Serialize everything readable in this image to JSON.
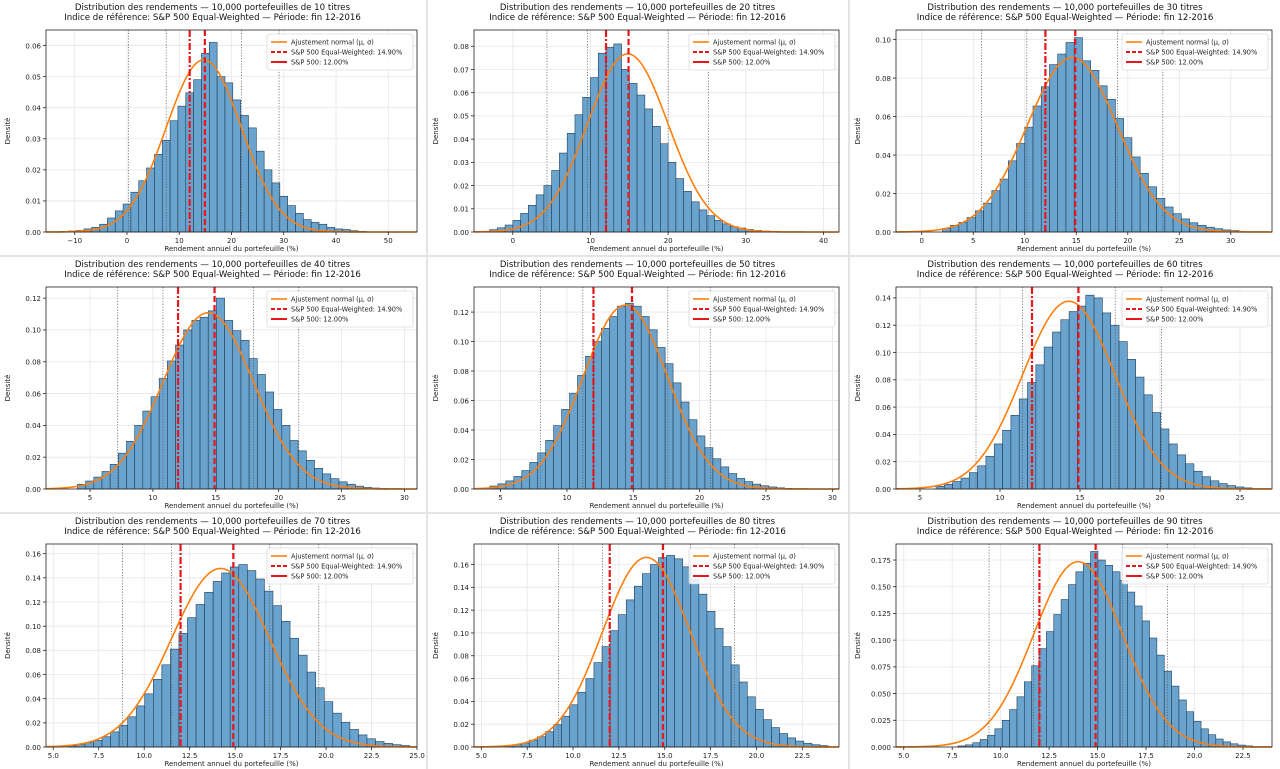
{
  "figure": {
    "legend_labels": {
      "fit": "Ajustement normal (μ, σ)",
      "ew": "S&P 500 Equal-Weighted: 14.90%",
      "sp": "S&P 500: 12.00%"
    },
    "colors": {
      "bars": "#6aa3cd",
      "bar_edge": "#1f3f5a",
      "fit_curve": "#ff7f0e",
      "benchmark_lines": "#e8151b",
      "sigma_lines": "#555555"
    }
  },
  "chart_data": [
    {
      "type": "bar",
      "title": "Distribution des rendements — 10,000 portefeuilles de 10 titres",
      "subtitle": "Indice de référence: S&P 500 Equal-Weighted — Période: fin 12-2016",
      "xlabel": "Rendement annuel du portefeuille (%)",
      "ylabel": "Densité",
      "n_stocks": 10,
      "mean": 14.7,
      "std": 7.2,
      "xlim": [
        -15.5,
        55.5
      ],
      "ylim": [
        0,
        0.065
      ],
      "xticks": [
        -10,
        0,
        10,
        20,
        30,
        40,
        50
      ],
      "xtick_labels": [
        "−10",
        "0",
        "10",
        "20",
        "30",
        "40",
        "50"
      ],
      "yticks": [
        0,
        0.01,
        0.02,
        0.03,
        0.04,
        0.05,
        0.06
      ],
      "ytick_labels": [
        "0.00",
        "0.01",
        "0.02",
        "0.03",
        "0.04",
        "0.05",
        "0.06"
      ],
      "bin_start": -12.75,
      "bin_width": 1.5,
      "values": [
        0.0002,
        0.0003,
        0.0005,
        0.001,
        0.0015,
        0.0025,
        0.0045,
        0.0068,
        0.009,
        0.0128,
        0.0165,
        0.0206,
        0.025,
        0.0295,
        0.0358,
        0.0405,
        0.0448,
        0.049,
        0.0575,
        0.061,
        0.05,
        0.048,
        0.0425,
        0.0375,
        0.0335,
        0.026,
        0.02,
        0.0158,
        0.0115,
        0.0085,
        0.006,
        0.004,
        0.0031,
        0.0025,
        0.0015,
        0.001,
        0.0008,
        0.0004,
        0.0002
      ],
      "benchmark_ew": 14.9,
      "benchmark_sp": 12.0
    },
    {
      "type": "bar",
      "title": "Distribution des rendements — 10,000 portefeuilles de 20 titres",
      "subtitle": "Indice de référence: S&P 500 Equal-Weighted — Période: fin 12-2016",
      "xlabel": "Rendement annuel du portefeuille (%)",
      "ylabel": "Densité",
      "n_stocks": 20,
      "mean": 14.8,
      "std": 5.2,
      "xlim": [
        -5,
        42
      ],
      "ylim": [
        0,
        0.087
      ],
      "xticks": [
        0,
        10,
        20,
        30,
        40
      ],
      "xtick_labels": [
        "0",
        "10",
        "20",
        "30",
        "40"
      ],
      "yticks": [
        0,
        0.01,
        0.02,
        0.03,
        0.04,
        0.05,
        0.06,
        0.07,
        0.08
      ],
      "ytick_labels": [
        "0.00",
        "0.01",
        "0.02",
        "0.03",
        "0.04",
        "0.05",
        "0.06",
        "0.07",
        "0.08"
      ],
      "bin_start": -3.0,
      "bin_width": 1.0,
      "values": [
        0.001,
        0.0018,
        0.003,
        0.005,
        0.008,
        0.0115,
        0.016,
        0.02,
        0.0265,
        0.034,
        0.0425,
        0.0505,
        0.058,
        0.0665,
        0.077,
        0.0795,
        0.081,
        0.07,
        0.064,
        0.059,
        0.053,
        0.0455,
        0.038,
        0.03,
        0.023,
        0.0175,
        0.013,
        0.0095,
        0.007,
        0.005,
        0.0035,
        0.0023,
        0.0017,
        0.0011,
        0.0007,
        0.0004,
        0.0002
      ],
      "benchmark_ew": 14.9,
      "benchmark_sp": 12.0
    },
    {
      "type": "bar",
      "title": "Distribution des rendements — 10,000 portefeuilles de 30 titres",
      "subtitle": "Indice de référence: S&P 500 Equal-Weighted — Période: fin 12-2016",
      "xlabel": "Rendement annuel du portefeuille (%)",
      "ylabel": "Densité",
      "n_stocks": 30,
      "mean": 14.6,
      "std": 4.4,
      "xlim": [
        -2.5,
        34
      ],
      "ylim": [
        0,
        0.105
      ],
      "xticks": [
        0,
        5,
        10,
        15,
        20,
        25,
        30
      ],
      "xtick_labels": [
        "0",
        "5",
        "10",
        "15",
        "20",
        "25",
        "30"
      ],
      "yticks": [
        0,
        0.02,
        0.04,
        0.06,
        0.08,
        0.1
      ],
      "ytick_labels": [
        "0.00",
        "0.02",
        "0.04",
        "0.06",
        "0.08",
        "0.10"
      ],
      "bin_start": 2.0,
      "bin_width": 0.8,
      "values": [
        0.0018,
        0.0035,
        0.005,
        0.0075,
        0.011,
        0.015,
        0.0215,
        0.0275,
        0.037,
        0.046,
        0.0545,
        0.0655,
        0.0755,
        0.087,
        0.0925,
        0.0985,
        0.101,
        0.089,
        0.084,
        0.076,
        0.069,
        0.059,
        0.049,
        0.039,
        0.0305,
        0.0235,
        0.0175,
        0.013,
        0.0095,
        0.0068,
        0.0048,
        0.0035,
        0.0025,
        0.0017,
        0.0011,
        0.0007
      ],
      "benchmark_ew": 14.9,
      "benchmark_sp": 12.0
    },
    {
      "type": "bar",
      "title": "Distribution des rendements — 10,000 portefeuilles de 40 titres",
      "subtitle": "Indice de référence: S&P 500 Equal-Weighted — Période: fin 12-2016",
      "xlabel": "Rendement annuel du portefeuille (%)",
      "ylabel": "Densité",
      "n_stocks": 40,
      "mean": 14.4,
      "std": 3.6,
      "xlim": [
        1.5,
        31
      ],
      "ylim": [
        0,
        0.127
      ],
      "xticks": [
        5,
        10,
        15,
        20,
        25,
        30
      ],
      "xtick_labels": [
        "5",
        "10",
        "15",
        "20",
        "25",
        "30"
      ],
      "yticks": [
        0,
        0.02,
        0.04,
        0.06,
        0.08,
        0.1,
        0.12
      ],
      "ytick_labels": [
        "0.00",
        "0.02",
        "0.04",
        "0.06",
        "0.08",
        "0.10",
        "0.12"
      ],
      "bin_start": 4.0,
      "bin_width": 0.65,
      "values": [
        0.003,
        0.005,
        0.0075,
        0.011,
        0.0155,
        0.0225,
        0.03,
        0.04,
        0.049,
        0.058,
        0.0695,
        0.0805,
        0.0905,
        0.1,
        0.106,
        0.108,
        0.112,
        0.12,
        0.106,
        0.0995,
        0.0935,
        0.082,
        0.072,
        0.061,
        0.05,
        0.04,
        0.0305,
        0.024,
        0.018,
        0.013,
        0.0095,
        0.0065,
        0.0045,
        0.003,
        0.0018,
        0.001,
        0.0006,
        0.0003
      ],
      "benchmark_ew": 14.9,
      "benchmark_sp": 12.0
    },
    {
      "type": "bar",
      "title": "Distribution des rendements — 10,000 portefeuilles de 50 titres",
      "subtitle": "Indice de référence: S&P 500 Equal-Weighted — Période: fin 12-2016",
      "xlabel": "Rendement annuel du portefeuille (%)",
      "ylabel": "Densité",
      "n_stocks": 50,
      "mean": 14.4,
      "std": 3.2,
      "xlim": [
        3,
        30.5
      ],
      "ylim": [
        0,
        0.137
      ],
      "xticks": [
        5,
        10,
        15,
        20,
        25,
        30
      ],
      "xtick_labels": [
        "5",
        "10",
        "15",
        "20",
        "25",
        "30"
      ],
      "yticks": [
        0,
        0.02,
        0.04,
        0.06,
        0.08,
        0.1,
        0.12
      ],
      "ytick_labels": [
        "0.00",
        "0.02",
        "0.04",
        "0.06",
        "0.08",
        "0.10",
        "0.12"
      ],
      "bin_start": 4.2,
      "bin_width": 0.6,
      "values": [
        0.002,
        0.0035,
        0.0055,
        0.0085,
        0.0125,
        0.018,
        0.0245,
        0.033,
        0.043,
        0.054,
        0.065,
        0.077,
        0.09,
        0.1,
        0.109,
        0.117,
        0.124,
        0.126,
        0.124,
        0.117,
        0.108,
        0.096,
        0.085,
        0.072,
        0.059,
        0.047,
        0.036,
        0.028,
        0.0205,
        0.015,
        0.0105,
        0.0072,
        0.005,
        0.0033,
        0.0022,
        0.0014,
        0.0008,
        0.0004
      ],
      "benchmark_ew": 14.9,
      "benchmark_sp": 12.0
    },
    {
      "type": "bar",
      "title": "Distribution des rendements — 10,000 portefeuilles de 60 titres",
      "subtitle": "Indice de référence: S&P 500 Equal-Weighted — Période: fin 12-2016",
      "xlabel": "Rendement annuel du portefeuille (%)",
      "ylabel": "Densité",
      "n_stocks": 60,
      "mean": 14.3,
      "std": 2.9,
      "xlim": [
        3.5,
        27
      ],
      "ylim": [
        0,
        0.148
      ],
      "xticks": [
        5,
        10,
        15,
        20,
        25
      ],
      "xtick_labels": [
        "5",
        "10",
        "15",
        "20",
        "25"
      ],
      "yticks": [
        0,
        0.02,
        0.04,
        0.06,
        0.08,
        0.1,
        0.12,
        0.14
      ],
      "ytick_labels": [
        "0.00",
        "0.02",
        "0.04",
        "0.06",
        "0.08",
        "0.10",
        "0.12",
        "0.14"
      ],
      "bin_start": 6.0,
      "bin_width": 0.52,
      "values": [
        0.002,
        0.0035,
        0.0055,
        0.008,
        0.012,
        0.017,
        0.024,
        0.033,
        0.043,
        0.054,
        0.066,
        0.078,
        0.091,
        0.104,
        0.115,
        0.124,
        0.13,
        0.134,
        0.142,
        0.14,
        0.129,
        0.12,
        0.108,
        0.095,
        0.082,
        0.069,
        0.056,
        0.044,
        0.033,
        0.025,
        0.0185,
        0.013,
        0.009,
        0.006,
        0.004,
        0.0025,
        0.0015,
        0.0008
      ],
      "benchmark_ew": 14.9,
      "benchmark_sp": 12.0
    },
    {
      "type": "bar",
      "title": "Distribution des rendements — 10,000 portefeuilles de 70 titres",
      "subtitle": "Indice de référence: S&P 500 Equal-Weighted — Période: fin 12-2016",
      "xlabel": "Rendement annuel du portefeuille (%)",
      "ylabel": "Densité",
      "n_stocks": 70,
      "mean": 14.2,
      "std": 2.7,
      "xlim": [
        4.6,
        25
      ],
      "ylim": [
        0,
        0.168
      ],
      "xticks": [
        5,
        7.5,
        10,
        12.5,
        15,
        17.5,
        20,
        22.5,
        25
      ],
      "xtick_labels": [
        "5.0",
        "7.5",
        "10.0",
        "12.5",
        "15.0",
        "17.5",
        "20.0",
        "22.5",
        "25.0"
      ],
      "yticks": [
        0,
        0.02,
        0.04,
        0.06,
        0.08,
        0.1,
        0.12,
        0.14,
        0.16
      ],
      "ytick_labels": [
        "0.00",
        "0.02",
        "0.04",
        "0.06",
        "0.08",
        "0.10",
        "0.12",
        "0.14",
        "0.16"
      ],
      "bin_start": 5.8,
      "bin_width": 0.47,
      "values": [
        0.001,
        0.002,
        0.0035,
        0.0055,
        0.0085,
        0.0125,
        0.018,
        0.025,
        0.034,
        0.044,
        0.056,
        0.068,
        0.081,
        0.094,
        0.107,
        0.118,
        0.128,
        0.137,
        0.144,
        0.149,
        0.151,
        0.146,
        0.139,
        0.129,
        0.117,
        0.104,
        0.09,
        0.076,
        0.062,
        0.049,
        0.0375,
        0.028,
        0.0205,
        0.0145,
        0.01,
        0.0068,
        0.0045,
        0.003,
        0.0019,
        0.0012
      ],
      "benchmark_ew": 14.9,
      "benchmark_sp": 12.0
    },
    {
      "type": "bar",
      "title": "Distribution des rendements — 10,000 portefeuilles de 80 titres",
      "subtitle": "Indice de référence: S&P 500 Equal-Weighted — Période: fin 12-2016",
      "xlabel": "Rendement annuel du portefeuille (%)",
      "ylabel": "Densité",
      "n_stocks": 80,
      "mean": 14.0,
      "std": 2.4,
      "xlim": [
        4.6,
        24.5
      ],
      "ylim": [
        0,
        0.178
      ],
      "xticks": [
        5,
        7.5,
        10,
        12.5,
        15,
        17.5,
        20,
        22.5
      ],
      "xtick_labels": [
        "5.0",
        "7.5",
        "10.0",
        "12.5",
        "15.0",
        "17.5",
        "20.0",
        "22.5"
      ],
      "yticks": [
        0,
        0.02,
        0.04,
        0.06,
        0.08,
        0.1,
        0.12,
        0.14,
        0.16
      ],
      "ytick_labels": [
        "0.00",
        "0.02",
        "0.04",
        "0.06",
        "0.08",
        "0.10",
        "0.12",
        "0.14",
        "0.16"
      ],
      "bin_start": 6.3,
      "bin_width": 0.44,
      "values": [
        0.001,
        0.002,
        0.0035,
        0.006,
        0.009,
        0.0135,
        0.0195,
        0.027,
        0.037,
        0.048,
        0.06,
        0.074,
        0.088,
        0.102,
        0.116,
        0.129,
        0.141,
        0.152,
        0.16,
        0.166,
        0.168,
        0.165,
        0.158,
        0.147,
        0.134,
        0.119,
        0.104,
        0.088,
        0.072,
        0.057,
        0.044,
        0.033,
        0.024,
        0.017,
        0.0118,
        0.008,
        0.0052,
        0.0033,
        0.002,
        0.0012
      ],
      "benchmark_ew": 14.9,
      "benchmark_sp": 12.0
    },
    {
      "type": "bar",
      "title": "Distribution des rendements — 10,000 portefeuilles de 90 titres",
      "subtitle": "Indice de référence: S&P 500 Equal-Weighted — Période: fin 12-2016",
      "xlabel": "Rendement annuel du portefeuille (%)",
      "ylabel": "Densité",
      "n_stocks": 90,
      "mean": 14.0,
      "std": 2.3,
      "xlim": [
        4.6,
        24
      ],
      "ylim": [
        0,
        0.19
      ],
      "xticks": [
        5,
        7.5,
        10,
        12.5,
        15,
        17.5,
        20,
        22.5
      ],
      "xtick_labels": [
        "5.0",
        "7.5",
        "10.0",
        "12.5",
        "15.0",
        "17.5",
        "20.0",
        "22.5"
      ],
      "yticks": [
        0,
        0.025,
        0.05,
        0.075,
        0.1,
        0.125,
        0.15,
        0.175
      ],
      "ytick_labels": [
        "0.000",
        "0.025",
        "0.050",
        "0.075",
        "0.100",
        "0.125",
        "0.150",
        "0.175"
      ],
      "bin_start": 7.8,
      "bin_width": 0.38,
      "values": [
        0.001,
        0.002,
        0.004,
        0.007,
        0.011,
        0.017,
        0.025,
        0.035,
        0.047,
        0.061,
        0.076,
        0.092,
        0.108,
        0.124,
        0.138,
        0.152,
        0.164,
        0.172,
        0.183,
        0.175,
        0.17,
        0.164,
        0.156,
        0.145,
        0.132,
        0.118,
        0.102,
        0.086,
        0.071,
        0.057,
        0.044,
        0.033,
        0.024,
        0.017,
        0.0115,
        0.0075,
        0.0048,
        0.003,
        0.0018,
        0.001
      ],
      "benchmark_ew": 14.9,
      "benchmark_sp": 12.0
    }
  ]
}
